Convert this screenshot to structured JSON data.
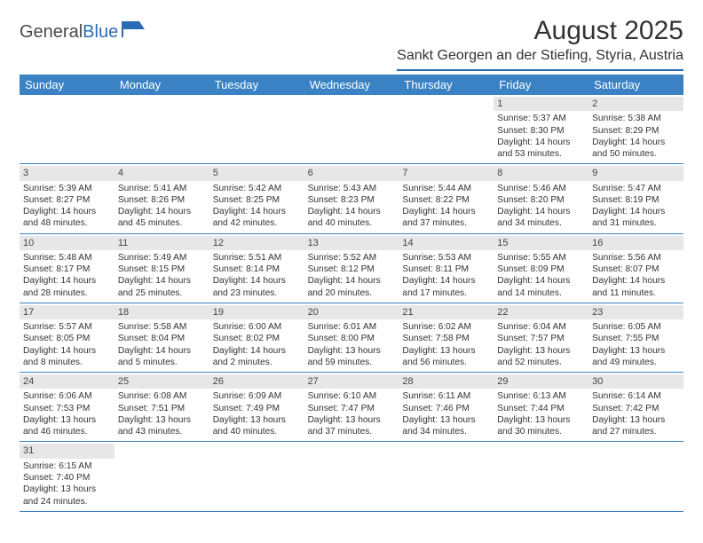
{
  "logo": {
    "part1": "General",
    "part2": "Blue"
  },
  "title": "August 2025",
  "location": "Sankt Georgen an der Stiefing, Styria, Austria",
  "weekdays": [
    "Sunday",
    "Monday",
    "Tuesday",
    "Wednesday",
    "Thursday",
    "Friday",
    "Saturday"
  ],
  "colors": {
    "header_bg": "#3a82c4",
    "border": "#2a6db5",
    "daynum_bg": "#e7e7e7"
  },
  "days": [
    {
      "n": "",
      "sunrise": "",
      "sunset": "",
      "daylight": ""
    },
    {
      "n": "",
      "sunrise": "",
      "sunset": "",
      "daylight": ""
    },
    {
      "n": "",
      "sunrise": "",
      "sunset": "",
      "daylight": ""
    },
    {
      "n": "",
      "sunrise": "",
      "sunset": "",
      "daylight": ""
    },
    {
      "n": "",
      "sunrise": "",
      "sunset": "",
      "daylight": ""
    },
    {
      "n": "1",
      "sunrise": "Sunrise: 5:37 AM",
      "sunset": "Sunset: 8:30 PM",
      "daylight": "Daylight: 14 hours and 53 minutes."
    },
    {
      "n": "2",
      "sunrise": "Sunrise: 5:38 AM",
      "sunset": "Sunset: 8:29 PM",
      "daylight": "Daylight: 14 hours and 50 minutes."
    },
    {
      "n": "3",
      "sunrise": "Sunrise: 5:39 AM",
      "sunset": "Sunset: 8:27 PM",
      "daylight": "Daylight: 14 hours and 48 minutes."
    },
    {
      "n": "4",
      "sunrise": "Sunrise: 5:41 AM",
      "sunset": "Sunset: 8:26 PM",
      "daylight": "Daylight: 14 hours and 45 minutes."
    },
    {
      "n": "5",
      "sunrise": "Sunrise: 5:42 AM",
      "sunset": "Sunset: 8:25 PM",
      "daylight": "Daylight: 14 hours and 42 minutes."
    },
    {
      "n": "6",
      "sunrise": "Sunrise: 5:43 AM",
      "sunset": "Sunset: 8:23 PM",
      "daylight": "Daylight: 14 hours and 40 minutes."
    },
    {
      "n": "7",
      "sunrise": "Sunrise: 5:44 AM",
      "sunset": "Sunset: 8:22 PM",
      "daylight": "Daylight: 14 hours and 37 minutes."
    },
    {
      "n": "8",
      "sunrise": "Sunrise: 5:46 AM",
      "sunset": "Sunset: 8:20 PM",
      "daylight": "Daylight: 14 hours and 34 minutes."
    },
    {
      "n": "9",
      "sunrise": "Sunrise: 5:47 AM",
      "sunset": "Sunset: 8:19 PM",
      "daylight": "Daylight: 14 hours and 31 minutes."
    },
    {
      "n": "10",
      "sunrise": "Sunrise: 5:48 AM",
      "sunset": "Sunset: 8:17 PM",
      "daylight": "Daylight: 14 hours and 28 minutes."
    },
    {
      "n": "11",
      "sunrise": "Sunrise: 5:49 AM",
      "sunset": "Sunset: 8:15 PM",
      "daylight": "Daylight: 14 hours and 25 minutes."
    },
    {
      "n": "12",
      "sunrise": "Sunrise: 5:51 AM",
      "sunset": "Sunset: 8:14 PM",
      "daylight": "Daylight: 14 hours and 23 minutes."
    },
    {
      "n": "13",
      "sunrise": "Sunrise: 5:52 AM",
      "sunset": "Sunset: 8:12 PM",
      "daylight": "Daylight: 14 hours and 20 minutes."
    },
    {
      "n": "14",
      "sunrise": "Sunrise: 5:53 AM",
      "sunset": "Sunset: 8:11 PM",
      "daylight": "Daylight: 14 hours and 17 minutes."
    },
    {
      "n": "15",
      "sunrise": "Sunrise: 5:55 AM",
      "sunset": "Sunset: 8:09 PM",
      "daylight": "Daylight: 14 hours and 14 minutes."
    },
    {
      "n": "16",
      "sunrise": "Sunrise: 5:56 AM",
      "sunset": "Sunset: 8:07 PM",
      "daylight": "Daylight: 14 hours and 11 minutes."
    },
    {
      "n": "17",
      "sunrise": "Sunrise: 5:57 AM",
      "sunset": "Sunset: 8:05 PM",
      "daylight": "Daylight: 14 hours and 8 minutes."
    },
    {
      "n": "18",
      "sunrise": "Sunrise: 5:58 AM",
      "sunset": "Sunset: 8:04 PM",
      "daylight": "Daylight: 14 hours and 5 minutes."
    },
    {
      "n": "19",
      "sunrise": "Sunrise: 6:00 AM",
      "sunset": "Sunset: 8:02 PM",
      "daylight": "Daylight: 14 hours and 2 minutes."
    },
    {
      "n": "20",
      "sunrise": "Sunrise: 6:01 AM",
      "sunset": "Sunset: 8:00 PM",
      "daylight": "Daylight: 13 hours and 59 minutes."
    },
    {
      "n": "21",
      "sunrise": "Sunrise: 6:02 AM",
      "sunset": "Sunset: 7:58 PM",
      "daylight": "Daylight: 13 hours and 56 minutes."
    },
    {
      "n": "22",
      "sunrise": "Sunrise: 6:04 AM",
      "sunset": "Sunset: 7:57 PM",
      "daylight": "Daylight: 13 hours and 52 minutes."
    },
    {
      "n": "23",
      "sunrise": "Sunrise: 6:05 AM",
      "sunset": "Sunset: 7:55 PM",
      "daylight": "Daylight: 13 hours and 49 minutes."
    },
    {
      "n": "24",
      "sunrise": "Sunrise: 6:06 AM",
      "sunset": "Sunset: 7:53 PM",
      "daylight": "Daylight: 13 hours and 46 minutes."
    },
    {
      "n": "25",
      "sunrise": "Sunrise: 6:08 AM",
      "sunset": "Sunset: 7:51 PM",
      "daylight": "Daylight: 13 hours and 43 minutes."
    },
    {
      "n": "26",
      "sunrise": "Sunrise: 6:09 AM",
      "sunset": "Sunset: 7:49 PM",
      "daylight": "Daylight: 13 hours and 40 minutes."
    },
    {
      "n": "27",
      "sunrise": "Sunrise: 6:10 AM",
      "sunset": "Sunset: 7:47 PM",
      "daylight": "Daylight: 13 hours and 37 minutes."
    },
    {
      "n": "28",
      "sunrise": "Sunrise: 6:11 AM",
      "sunset": "Sunset: 7:46 PM",
      "daylight": "Daylight: 13 hours and 34 minutes."
    },
    {
      "n": "29",
      "sunrise": "Sunrise: 6:13 AM",
      "sunset": "Sunset: 7:44 PM",
      "daylight": "Daylight: 13 hours and 30 minutes."
    },
    {
      "n": "30",
      "sunrise": "Sunrise: 6:14 AM",
      "sunset": "Sunset: 7:42 PM",
      "daylight": "Daylight: 13 hours and 27 minutes."
    },
    {
      "n": "31",
      "sunrise": "Sunrise: 6:15 AM",
      "sunset": "Sunset: 7:40 PM",
      "daylight": "Daylight: 13 hours and 24 minutes."
    },
    {
      "n": "",
      "sunrise": "",
      "sunset": "",
      "daylight": ""
    },
    {
      "n": "",
      "sunrise": "",
      "sunset": "",
      "daylight": ""
    },
    {
      "n": "",
      "sunrise": "",
      "sunset": "",
      "daylight": ""
    },
    {
      "n": "",
      "sunrise": "",
      "sunset": "",
      "daylight": ""
    },
    {
      "n": "",
      "sunrise": "",
      "sunset": "",
      "daylight": ""
    },
    {
      "n": "",
      "sunrise": "",
      "sunset": "",
      "daylight": ""
    }
  ]
}
